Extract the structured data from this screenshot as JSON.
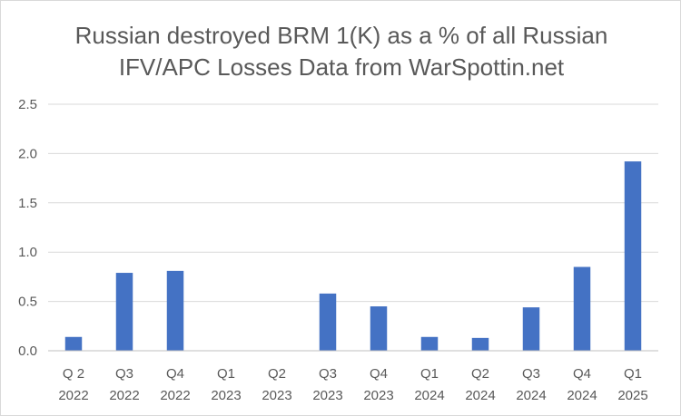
{
  "chart_data": {
    "type": "bar",
    "title_lines": [
      "Russian destroyed BRM 1(K) as a % of all Russian",
      "IFV/APC Losses Data from WarSpottin.net"
    ],
    "xlabel": "",
    "ylabel": "",
    "categories": [
      [
        "Q 2",
        "2022"
      ],
      [
        "Q3",
        "2022"
      ],
      [
        "Q4",
        "2022"
      ],
      [
        "Q1",
        "2023"
      ],
      [
        "Q2",
        "2023"
      ],
      [
        "Q3",
        "2023"
      ],
      [
        "Q4",
        "2023"
      ],
      [
        "Q1",
        "2024"
      ],
      [
        "Q2",
        "2024"
      ],
      [
        "Q3",
        "2024"
      ],
      [
        "Q4",
        "2024"
      ],
      [
        "Q1",
        "2025"
      ]
    ],
    "values": [
      0.14,
      0.79,
      0.81,
      0,
      0,
      0.58,
      0.45,
      0.14,
      0.13,
      0.44,
      0.85,
      1.92
    ],
    "ylim": [
      0,
      2.5
    ],
    "yticks": [
      "0.0",
      "0.5",
      "1.0",
      "1.5",
      "2.0",
      "2.5"
    ],
    "grid": true,
    "legend": "none",
    "bar_color": "#4472c4"
  }
}
